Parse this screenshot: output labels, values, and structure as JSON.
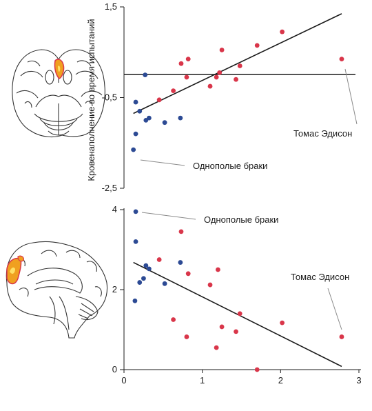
{
  "colors": {
    "red_points": "#d9364a",
    "blue_points": "#2c4a94",
    "axis": "#1a1a1a",
    "annotation_line": "#8a8a8a",
    "brain_activation": "#f0a020"
  },
  "figures": {
    "top_left": {
      "icon": "brain-axial-view-icon",
      "activation": "orbitofrontal-cortex"
    },
    "bottom_left": {
      "icon": "brain-sagittal-view-icon",
      "activation": "frontal-cortex"
    }
  },
  "chart_data": [
    {
      "type": "scatter",
      "ylabel": "Кровенаполнение во время испытаний",
      "xlabel": "",
      "ylim": [
        -2.5,
        1.5
      ],
      "xlim": [
        0,
        3
      ],
      "yticks": [
        "1,5",
        "-0,5",
        "-2,5"
      ],
      "ytick_values": [
        1.5,
        -0.5,
        -2.5
      ],
      "reference_line_y": 0.0,
      "series": [
        {
          "color": "blue",
          "points": [
            {
              "x": 0.12,
              "y": -1.65
            },
            {
              "x": 0.15,
              "y": -1.3
            },
            {
              "x": 0.15,
              "y": -0.6
            },
            {
              "x": 0.2,
              "y": -0.8
            },
            {
              "x": 0.28,
              "y": -1.0
            },
            {
              "x": 0.32,
              "y": -0.95
            },
            {
              "x": 0.52,
              "y": -1.05
            },
            {
              "x": 0.72,
              "y": -0.95
            },
            {
              "x": 0.27,
              "y": 0.0
            }
          ]
        },
        {
          "color": "red",
          "points": [
            {
              "x": 0.45,
              "y": -0.55
            },
            {
              "x": 0.63,
              "y": -0.35
            },
            {
              "x": 0.73,
              "y": 0.25
            },
            {
              "x": 0.8,
              "y": -0.05
            },
            {
              "x": 0.82,
              "y": 0.35
            },
            {
              "x": 1.1,
              "y": -0.25
            },
            {
              "x": 1.18,
              "y": -0.05
            },
            {
              "x": 1.22,
              "y": 0.05
            },
            {
              "x": 1.25,
              "y": 0.55
            },
            {
              "x": 1.43,
              "y": -0.1
            },
            {
              "x": 1.48,
              "y": 0.2
            },
            {
              "x": 1.7,
              "y": 0.65
            },
            {
              "x": 2.02,
              "y": 0.95
            },
            {
              "x": 2.78,
              "y": 0.35
            }
          ]
        }
      ],
      "trendline": {
        "x": [
          0.12,
          2.78
        ],
        "y": [
          -0.85,
          1.35
        ]
      },
      "annotations": [
        {
          "text": "Томас Эдисон",
          "x": 2.78,
          "y": 0.35
        },
        {
          "text": "Однополые браки",
          "x": 0.15,
          "y": -1.3
        }
      ]
    },
    {
      "type": "scatter",
      "xlabel": "",
      "ylabel": "",
      "xlim": [
        0,
        3
      ],
      "ylim": [
        0,
        4
      ],
      "xticks": [
        "0",
        "1",
        "2",
        "3"
      ],
      "xtick_values": [
        0,
        1,
        2,
        3
      ],
      "yticks": [
        "4",
        "2",
        "0"
      ],
      "ytick_values": [
        4,
        2,
        0
      ],
      "series": [
        {
          "color": "blue",
          "points": [
            {
              "x": 0.15,
              "y": 3.95
            },
            {
              "x": 0.15,
              "y": 3.2
            },
            {
              "x": 0.14,
              "y": 1.72
            },
            {
              "x": 0.2,
              "y": 2.18
            },
            {
              "x": 0.25,
              "y": 2.28
            },
            {
              "x": 0.28,
              "y": 2.6
            },
            {
              "x": 0.32,
              "y": 2.52
            },
            {
              "x": 0.52,
              "y": 2.15
            },
            {
              "x": 0.72,
              "y": 2.68
            }
          ]
        },
        {
          "color": "red",
          "points": [
            {
              "x": 0.45,
              "y": 2.75
            },
            {
              "x": 0.63,
              "y": 1.25
            },
            {
              "x": 0.73,
              "y": 3.45
            },
            {
              "x": 0.8,
              "y": 0.82
            },
            {
              "x": 0.82,
              "y": 2.4
            },
            {
              "x": 1.1,
              "y": 2.12
            },
            {
              "x": 1.18,
              "y": 0.55
            },
            {
              "x": 1.2,
              "y": 2.5
            },
            {
              "x": 1.25,
              "y": 1.07
            },
            {
              "x": 1.43,
              "y": 0.95
            },
            {
              "x": 1.48,
              "y": 1.4
            },
            {
              "x": 1.7,
              "y": 0.0
            },
            {
              "x": 2.02,
              "y": 1.17
            },
            {
              "x": 2.78,
              "y": 0.82
            }
          ]
        }
      ],
      "trendline": {
        "x": [
          0.12,
          2.78
        ],
        "y": [
          2.68,
          0.08
        ]
      },
      "annotations": [
        {
          "text": "Однополые браки",
          "x": 0.15,
          "y": 3.95
        },
        {
          "text": "Томас Эдисон",
          "x": 2.78,
          "y": 0.82
        }
      ]
    }
  ]
}
